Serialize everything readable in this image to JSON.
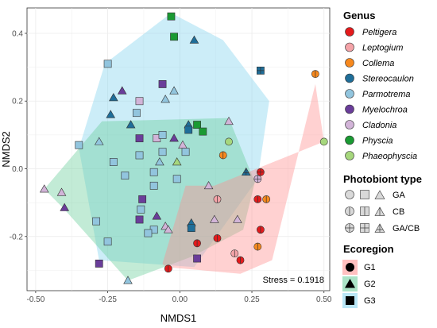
{
  "chart_data": {
    "type": "scatter",
    "title": "",
    "xlabel": "NMDS1",
    "ylabel": "NMDS2",
    "xlim": [
      -0.53,
      0.52
    ],
    "ylim": [
      -0.36,
      0.475
    ],
    "xticks": [
      -0.5,
      -0.25,
      0,
      0.25,
      0.5
    ],
    "xtick_labels": [
      "-0.50",
      "-0.25",
      "0.00",
      "0.25",
      "0.50"
    ],
    "yticks": [
      -0.2,
      0.0,
      0.2,
      0.4
    ],
    "ytick_labels": [
      "-0.2",
      "0.0",
      "0.2",
      "0.4"
    ],
    "grid": true,
    "annotation": "Stress = 0.1918",
    "legend_position": "right",
    "colors": {
      "Peltigera": "#e41a1c",
      "Leptogium": "#f4a3a8",
      "Collema": "#f7891e",
      "Stereocaulon": "#1f6e99",
      "Parmotrema": "#92c5de",
      "Myelochroa": "#6a3d9a",
      "Cladonia": "#d2b4d8",
      "Physcia": "#1a9a33",
      "Phaeophyscia": "#a6d77d"
    },
    "hull_colors": {
      "G1": "#ff8c8c",
      "G2": "#66cc99",
      "G3": "#80d2ee"
    },
    "hulls": {
      "G1": [
        [
          -0.05,
          -0.29
        ],
        [
          0.21,
          -0.31
        ],
        [
          0.32,
          -0.27
        ],
        [
          0.47,
          0.25
        ],
        [
          0.5,
          0.08
        ],
        [
          0.12,
          -0.05
        ],
        [
          0.02,
          -0.05
        ],
        [
          -0.06,
          -0.28
        ]
      ],
      "G2": [
        [
          -0.47,
          -0.06
        ],
        [
          -0.27,
          0.14
        ],
        [
          0.17,
          0.15
        ],
        [
          0.26,
          -0.04
        ],
        [
          0.22,
          -0.18
        ],
        [
          0.04,
          -0.26
        ],
        [
          -0.18,
          -0.33
        ],
        [
          -0.4,
          -0.12
        ]
      ],
      "G3": [
        [
          -0.26,
          0.31
        ],
        [
          -0.03,
          0.46
        ],
        [
          0.15,
          0.38
        ],
        [
          0.31,
          0.2
        ],
        [
          0.27,
          -0.03
        ],
        [
          0.05,
          -0.29
        ],
        [
          -0.28,
          -0.27
        ],
        [
          -0.35,
          0.06
        ]
      ]
    },
    "points": [
      {
        "x": -0.03,
        "y": 0.45,
        "genus": "Physcia",
        "ecoregion": "G3",
        "photobiont": "GA"
      },
      {
        "x": -0.02,
        "y": 0.39,
        "genus": "Physcia",
        "ecoregion": "G3",
        "photobiont": "GA"
      },
      {
        "x": 0.05,
        "y": 0.38,
        "genus": "Stereocaulon",
        "ecoregion": "G2",
        "photobiont": "GA"
      },
      {
        "x": 0.28,
        "y": 0.29,
        "genus": "Stereocaulon",
        "ecoregion": "G3",
        "photobiont": "GA/CB"
      },
      {
        "x": -0.25,
        "y": 0.31,
        "genus": "Parmotrema",
        "ecoregion": "G3",
        "photobiont": "GA"
      },
      {
        "x": -0.02,
        "y": 0.23,
        "genus": "Parmotrema",
        "ecoregion": "G2",
        "photobiont": "GA"
      },
      {
        "x": -0.06,
        "y": 0.25,
        "genus": "Myelochroa",
        "ecoregion": "G3",
        "photobiont": "GA"
      },
      {
        "x": -0.23,
        "y": 0.21,
        "genus": "Stereocaulon",
        "ecoregion": "G2",
        "photobiont": "GA"
      },
      {
        "x": -0.2,
        "y": 0.23,
        "genus": "Myelochroa",
        "ecoregion": "G2",
        "photobiont": "GA"
      },
      {
        "x": -0.14,
        "y": 0.2,
        "genus": "Cladonia",
        "ecoregion": "G3",
        "photobiont": "GA"
      },
      {
        "x": -0.05,
        "y": 0.205,
        "genus": "Parmotrema",
        "ecoregion": "G2",
        "photobiont": "GA"
      },
      {
        "x": -0.24,
        "y": 0.16,
        "genus": "Stereocaulon",
        "ecoregion": "G2",
        "photobiont": "GA"
      },
      {
        "x": -0.15,
        "y": 0.165,
        "genus": "Parmotrema",
        "ecoregion": "G3",
        "photobiont": "GA"
      },
      {
        "x": -0.17,
        "y": 0.13,
        "genus": "Stereocaulon",
        "ecoregion": "G2",
        "photobiont": "GA"
      },
      {
        "x": -0.14,
        "y": 0.09,
        "genus": "Myelochroa",
        "ecoregion": "G3",
        "photobiont": "GA"
      },
      {
        "x": -0.08,
        "y": 0.09,
        "genus": "Cladonia",
        "ecoregion": "G3",
        "photobiont": "GA"
      },
      {
        "x": -0.06,
        "y": 0.1,
        "genus": "Parmotrema",
        "ecoregion": "G3",
        "photobiont": "GA"
      },
      {
        "x": 0.03,
        "y": 0.13,
        "genus": "Stereocaulon",
        "ecoregion": "G2",
        "photobiont": "GA"
      },
      {
        "x": 0.03,
        "y": 0.115,
        "genus": "Stereocaulon",
        "ecoregion": "G3",
        "photobiont": "GA"
      },
      {
        "x": 0.06,
        "y": 0.13,
        "genus": "Physcia",
        "ecoregion": "G3",
        "photobiont": "GA"
      },
      {
        "x": 0.08,
        "y": 0.11,
        "genus": "Physcia",
        "ecoregion": "G3",
        "photobiont": "GA"
      },
      {
        "x": 0.17,
        "y": 0.14,
        "genus": "Cladonia",
        "ecoregion": "G2",
        "photobiont": "GA"
      },
      {
        "x": -0.02,
        "y": 0.09,
        "genus": "Myelochroa",
        "ecoregion": "G2",
        "photobiont": "GA"
      },
      {
        "x": 0.01,
        "y": 0.07,
        "genus": "Cladonia",
        "ecoregion": "G2",
        "photobiont": "GA"
      },
      {
        "x": -0.35,
        "y": 0.07,
        "genus": "Parmotrema",
        "ecoregion": "G3",
        "photobiont": "GA"
      },
      {
        "x": -0.28,
        "y": 0.08,
        "genus": "Parmotrema",
        "ecoregion": "G2",
        "photobiont": "GA"
      },
      {
        "x": -0.14,
        "y": 0.04,
        "genus": "Parmotrema",
        "ecoregion": "G3",
        "photobiont": "GA"
      },
      {
        "x": -0.06,
        "y": 0.05,
        "genus": "Parmotrema",
        "ecoregion": "G3",
        "photobiont": "GA"
      },
      {
        "x": 0.02,
        "y": 0.05,
        "genus": "Parmotrema",
        "ecoregion": "G3",
        "photobiont": "GA"
      },
      {
        "x": -0.01,
        "y": 0.02,
        "genus": "Phaeophyscia",
        "ecoregion": "G2",
        "photobiont": "GA"
      },
      {
        "x": -0.07,
        "y": 0.02,
        "genus": "Parmotrema",
        "ecoregion": "G2",
        "photobiont": "GA"
      },
      {
        "x": -0.23,
        "y": 0.02,
        "genus": "Parmotrema",
        "ecoregion": "G3",
        "photobiont": "GA"
      },
      {
        "x": -0.09,
        "y": -0.01,
        "genus": "Parmotrema",
        "ecoregion": "G3",
        "photobiont": "GA"
      },
      {
        "x": -0.01,
        "y": -0.03,
        "genus": "Parmotrema",
        "ecoregion": "G3",
        "photobiont": "GA"
      },
      {
        "x": -0.19,
        "y": -0.02,
        "genus": "Parmotrema",
        "ecoregion": "G3",
        "photobiont": "GA"
      },
      {
        "x": -0.09,
        "y": -0.05,
        "genus": "Parmotrema",
        "ecoregion": "G3",
        "photobiont": "GA"
      },
      {
        "x": -0.47,
        "y": -0.06,
        "genus": "Cladonia",
        "ecoregion": "G2",
        "photobiont": "GA"
      },
      {
        "x": -0.41,
        "y": -0.07,
        "genus": "Cladonia",
        "ecoregion": "G2",
        "photobiont": "GA"
      },
      {
        "x": -0.4,
        "y": -0.115,
        "genus": "Myelochroa",
        "ecoregion": "G2",
        "photobiont": "GA"
      },
      {
        "x": -0.13,
        "y": -0.09,
        "genus": "Myelochroa",
        "ecoregion": "G3",
        "photobiont": "GA"
      },
      {
        "x": -0.135,
        "y": -0.12,
        "genus": "Parmotrema",
        "ecoregion": "G3",
        "photobiont": "GA"
      },
      {
        "x": -0.29,
        "y": -0.155,
        "genus": "Parmotrema",
        "ecoregion": "G3",
        "photobiont": "GA"
      },
      {
        "x": -0.14,
        "y": -0.15,
        "genus": "Myelochroa",
        "ecoregion": "G3",
        "photobiont": "GA"
      },
      {
        "x": -0.08,
        "y": -0.14,
        "genus": "Myelochroa",
        "ecoregion": "G2",
        "photobiont": "GA"
      },
      {
        "x": -0.05,
        "y": -0.17,
        "genus": "Cladonia",
        "ecoregion": "G2",
        "photobiont": "GA"
      },
      {
        "x": -0.09,
        "y": -0.18,
        "genus": "Parmotrema",
        "ecoregion": "G3",
        "photobiont": "GA"
      },
      {
        "x": -0.11,
        "y": -0.19,
        "genus": "Parmotrema",
        "ecoregion": "G3",
        "photobiont": "GA"
      },
      {
        "x": -0.04,
        "y": -0.18,
        "genus": "Cladonia",
        "ecoregion": "G2",
        "photobiont": "GA"
      },
      {
        "x": 0.04,
        "y": -0.16,
        "genus": "Stereocaulon",
        "ecoregion": "G2",
        "photobiont": "GA"
      },
      {
        "x": 0.04,
        "y": -0.175,
        "genus": "Stereocaulon",
        "ecoregion": "G3",
        "photobiont": "GA"
      },
      {
        "x": -0.25,
        "y": -0.215,
        "genus": "Parmotrema",
        "ecoregion": "G3",
        "photobiont": "GA"
      },
      {
        "x": -0.28,
        "y": -0.28,
        "genus": "Myelochroa",
        "ecoregion": "G3",
        "photobiont": "GA"
      },
      {
        "x": -0.18,
        "y": -0.33,
        "genus": "Parmotrema",
        "ecoregion": "G2",
        "photobiont": "GA"
      },
      {
        "x": -0.04,
        "y": -0.295,
        "genus": "Peltigera",
        "ecoregion": "G1",
        "photobiont": "CB"
      },
      {
        "x": 0.06,
        "y": -0.265,
        "genus": "Myelochroa",
        "ecoregion": "G3",
        "photobiont": "GA"
      },
      {
        "x": 0.06,
        "y": -0.22,
        "genus": "Peltigera",
        "ecoregion": "G1",
        "photobiont": "CB"
      },
      {
        "x": 0.13,
        "y": -0.205,
        "genus": "Peltigera",
        "ecoregion": "G1",
        "photobiont": "CB"
      },
      {
        "x": 0.12,
        "y": -0.15,
        "genus": "Cladonia",
        "ecoregion": "G2",
        "photobiont": "GA"
      },
      {
        "x": 0.1,
        "y": -0.05,
        "genus": "Cladonia",
        "ecoregion": "G2",
        "photobiont": "GA"
      },
      {
        "x": 0.2,
        "y": -0.15,
        "genus": "Cladonia",
        "ecoregion": "G2",
        "photobiont": "GA"
      },
      {
        "x": 0.17,
        "y": 0.08,
        "genus": "Phaeophyscia",
        "ecoregion": "G1",
        "photobiont": "GA"
      },
      {
        "x": 0.15,
        "y": 0.04,
        "genus": "Collema",
        "ecoregion": "G1",
        "photobiont": "CB"
      },
      {
        "x": 0.23,
        "y": -0.01,
        "genus": "Stereocaulon",
        "ecoregion": "G2",
        "photobiont": "GA/CB"
      },
      {
        "x": 0.13,
        "y": -0.09,
        "genus": "Leptogium",
        "ecoregion": "G1",
        "photobiont": "CB"
      },
      {
        "x": 0.27,
        "y": -0.03,
        "genus": "Cladonia",
        "ecoregion": "G1",
        "photobiont": "GA/CB"
      },
      {
        "x": 0.28,
        "y": -0.01,
        "genus": "Peltigera",
        "ecoregion": "G1",
        "photobiont": "GA/CB"
      },
      {
        "x": 0.27,
        "y": -0.09,
        "genus": "Peltigera",
        "ecoregion": "G1",
        "photobiont": "CB"
      },
      {
        "x": 0.3,
        "y": -0.09,
        "genus": "Collema",
        "ecoregion": "G1",
        "photobiont": "CB"
      },
      {
        "x": 0.28,
        "y": -0.18,
        "genus": "Peltigera",
        "ecoregion": "G1",
        "photobiont": "CB"
      },
      {
        "x": 0.27,
        "y": -0.23,
        "genus": "Collema",
        "ecoregion": "G1",
        "photobiont": "CB"
      },
      {
        "x": 0.19,
        "y": -0.25,
        "genus": "Leptogium",
        "ecoregion": "G1",
        "photobiont": "CB"
      },
      {
        "x": 0.21,
        "y": -0.27,
        "genus": "Peltigera",
        "ecoregion": "G1",
        "photobiont": "CB"
      },
      {
        "x": 0.47,
        "y": 0.28,
        "genus": "Collema",
        "ecoregion": "G1",
        "photobiont": "CB"
      },
      {
        "x": 0.5,
        "y": 0.08,
        "genus": "Phaeophyscia",
        "ecoregion": "G1",
        "photobiont": "GA"
      }
    ]
  },
  "legend": {
    "genus_title": "Genus",
    "genus": [
      {
        "name": "Peltigera",
        "color": "#e41a1c"
      },
      {
        "name": "Leptogium",
        "color": "#f4a3a8"
      },
      {
        "name": "Collema",
        "color": "#f7891e"
      },
      {
        "name": "Stereocaulon",
        "color": "#1f6e99"
      },
      {
        "name": "Parmotrema",
        "color": "#92c5de"
      },
      {
        "name": "Myelochroa",
        "color": "#6a3d9a"
      },
      {
        "name": "Cladonia",
        "color": "#d2b4d8"
      },
      {
        "name": "Physcia",
        "color": "#1a9a33"
      },
      {
        "name": "Phaeophyscia",
        "color": "#a6d77d"
      }
    ],
    "photobiont_title": "Photobiont type",
    "photobiont": [
      {
        "name": "GA",
        "pattern": "none"
      },
      {
        "name": "CB",
        "pattern": "vertical"
      },
      {
        "name": "GA/CB",
        "pattern": "cross"
      }
    ],
    "ecoregion_title": "Ecoregion",
    "ecoregion": [
      {
        "name": "G1",
        "shape": "circle",
        "color": "#ff8c8c"
      },
      {
        "name": "G2",
        "shape": "triangle",
        "color": "#66cc99"
      },
      {
        "name": "G3",
        "shape": "square",
        "color": "#80d2ee"
      }
    ]
  }
}
